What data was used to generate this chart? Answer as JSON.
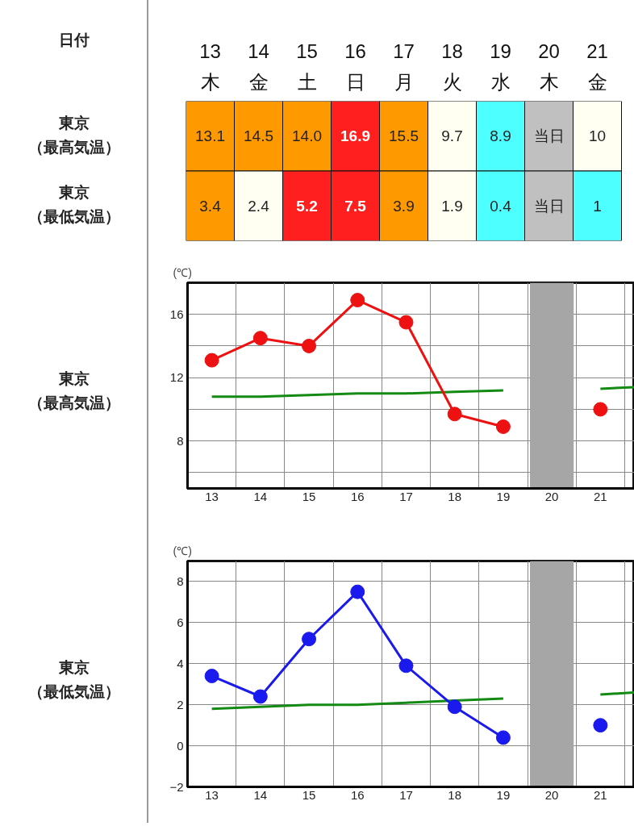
{
  "chart_data": [
    {
      "type": "heatmap",
      "xlabel": "日付",
      "categories": [
        "13\n木",
        "14\n金",
        "15\n土",
        "16\n日",
        "17\n月",
        "18\n火",
        "19\n水",
        "20\n木",
        "21\n金"
      ],
      "y_categories": [
        "東京（最高気温）",
        "東京（最低気温）"
      ],
      "cells": [
        [
          13.1,
          14.5,
          14.0,
          16.9,
          15.5,
          9.7,
          8.9,
          null,
          10
        ],
        [
          3.4,
          2.4,
          5.2,
          7.5,
          3.9,
          1.9,
          0.4,
          null,
          1
        ]
      ],
      "cell_labels": [
        [
          "13.1",
          "14.5",
          "14.0",
          "16.9",
          "15.5",
          "9.7",
          "8.9",
          "当日",
          "10"
        ],
        [
          "3.4",
          "2.4",
          "5.2",
          "7.5",
          "3.9",
          "1.9",
          "0.4",
          "当日",
          "1"
        ]
      ],
      "colors": [
        [
          "#ff9900",
          "#ff9900",
          "#ff9900",
          "#ff1f1f",
          "#ff9900",
          "#fffff2",
          "#4dffff",
          "#c0c0c0",
          "#fffff2"
        ],
        [
          "#ff9900",
          "#fffff2",
          "#ff1f1f",
          "#ff1f1f",
          "#ff9900",
          "#fffff2",
          "#4dffff",
          "#c0c0c0",
          "#4dffff"
        ]
      ]
    },
    {
      "type": "line",
      "title": "東京（最高気温）",
      "ylabel": "(℃)",
      "grid": true,
      "xlim": [
        12.5,
        21.7
      ],
      "xticks": [
        13,
        14,
        15,
        16,
        17,
        18,
        19,
        20,
        21
      ],
      "ylim": [
        5,
        18
      ],
      "yticks": [
        {
          "value": 6,
          "label": null
        },
        8,
        {
          "value": 10,
          "label": null
        },
        12,
        {
          "value": 14,
          "label": null
        },
        16
      ],
      "bands": [
        {
          "axis": "x",
          "from": 19.55,
          "to": 20.45,
          "color": "#a6a6a6"
        }
      ],
      "series": [
        {
          "color": "#138a13",
          "marker": "none",
          "x": [
            13,
            14,
            15,
            16,
            17,
            18,
            19,
            20,
            21,
            21.7
          ],
          "values": [
            10.8,
            10.8,
            10.9,
            11.0,
            11.0,
            11.1,
            11.2,
            null,
            11.3,
            11.4
          ]
        },
        {
          "color": "#ee1111",
          "marker": "circle",
          "x": [
            13,
            14,
            15,
            16,
            17,
            18,
            19,
            20,
            21
          ],
          "values": [
            13.1,
            14.5,
            14.0,
            16.9,
            15.5,
            9.7,
            8.9,
            null,
            10.0
          ]
        }
      ]
    },
    {
      "type": "line",
      "title": "東京（最低気温）",
      "ylabel": "(℃)",
      "grid": true,
      "xlim": [
        12.5,
        21.7
      ],
      "xticks": [
        13,
        14,
        15,
        16,
        17,
        18,
        19,
        20,
        21
      ],
      "ylim": [
        -2,
        9
      ],
      "yticks": [
        -2,
        0,
        2,
        4,
        6,
        8
      ],
      "bands": [
        {
          "axis": "x",
          "from": 19.55,
          "to": 20.45,
          "color": "#a6a6a6"
        }
      ],
      "series": [
        {
          "color": "#138a13",
          "marker": "none",
          "x": [
            13,
            14,
            15,
            16,
            17,
            18,
            19,
            20,
            21,
            21.7
          ],
          "values": [
            1.8,
            1.9,
            2.0,
            2.0,
            2.1,
            2.2,
            2.3,
            null,
            2.5,
            2.6
          ]
        },
        {
          "color": "#1a1aee",
          "marker": "circle",
          "x": [
            13,
            14,
            15,
            16,
            17,
            18,
            19,
            20,
            21
          ],
          "values": [
            3.4,
            2.4,
            5.2,
            7.5,
            3.9,
            1.9,
            0.4,
            null,
            1.0
          ]
        }
      ]
    }
  ]
}
